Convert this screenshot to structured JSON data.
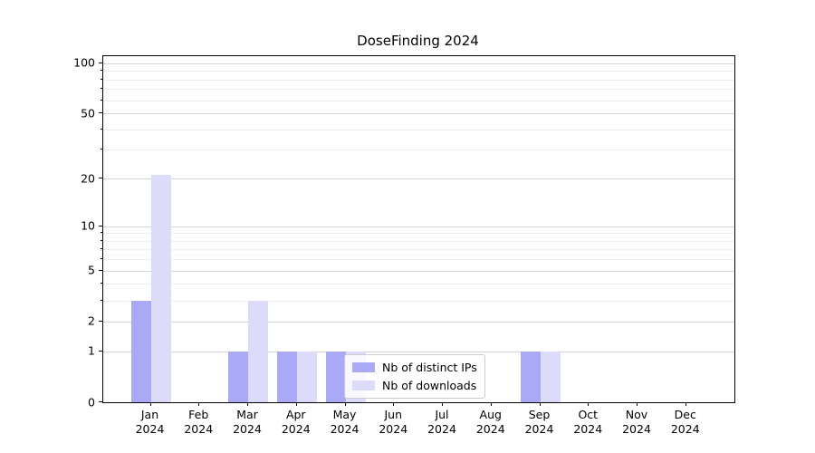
{
  "chart_data": {
    "type": "bar",
    "title": "DoseFinding 2024",
    "categories": [
      "Jan",
      "Feb",
      "Mar",
      "Apr",
      "May",
      "Jun",
      "Jul",
      "Aug",
      "Sep",
      "Oct",
      "Nov",
      "Dec"
    ],
    "x_tick_second_line": "2024",
    "series": [
      {
        "name": "Nb of distinct IPs",
        "color": "#a9a9f6",
        "values": [
          3,
          0,
          1,
          1,
          1,
          0,
          0,
          0,
          1,
          0,
          0,
          0
        ]
      },
      {
        "name": "Nb of downloads",
        "color": "#dcdcfa",
        "values": [
          21,
          0,
          3,
          1,
          1,
          0,
          0,
          0,
          1,
          0,
          0,
          0
        ]
      }
    ],
    "xlabel": "",
    "ylabel": "",
    "y_scale": "log1p",
    "y_ticks_major": [
      0,
      1,
      2,
      5,
      10,
      20,
      50,
      100
    ],
    "y_ticks_minor": [
      3,
      4,
      6,
      7,
      8,
      9,
      30,
      40,
      60,
      70,
      80,
      90
    ],
    "ylim": [
      0,
      110
    ],
    "grid": "on",
    "legend_position": "lower center"
  },
  "colors": {
    "grid_major": "#d4d4d4",
    "grid_minor": "#ededed",
    "spine": "#000000",
    "background": "#ffffff"
  }
}
